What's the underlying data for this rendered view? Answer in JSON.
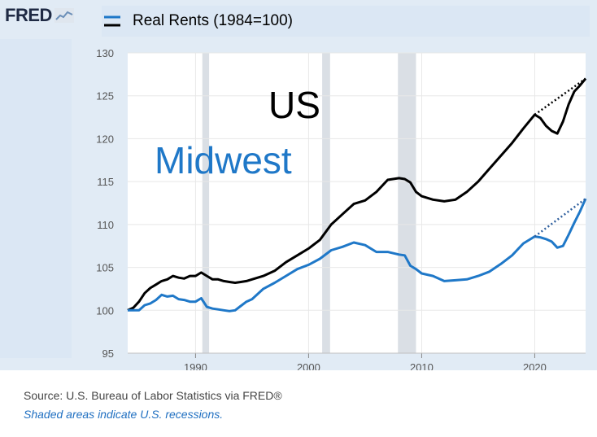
{
  "header": {
    "logo_text": "FRED",
    "logo_icon": "chart-line-icon"
  },
  "chart_data": {
    "type": "line",
    "title": "Real Rents (1984=100)",
    "xlabel": "",
    "ylabel": "",
    "xlim": [
      1984,
      2024.5
    ],
    "ylim": [
      95,
      130
    ],
    "x_ticks": [
      1990,
      2000,
      2010,
      2020
    ],
    "y_ticks": [
      95,
      100,
      105,
      110,
      115,
      120,
      125,
      130
    ],
    "grid": true,
    "recessions": [
      [
        1990.6,
        1991.2
      ],
      [
        2001.2,
        2001.9
      ],
      [
        2007.9,
        2009.5
      ]
    ],
    "series": [
      {
        "name": "US",
        "color": "#000000",
        "x": [
          1984,
          1984.5,
          1985,
          1985.5,
          1986,
          1986.5,
          1987,
          1987.5,
          1988,
          1988.5,
          1989,
          1989.5,
          1990,
          1990.5,
          1991,
          1991.5,
          1992,
          1992.5,
          1993,
          1993.5,
          1994,
          1994.5,
          1995,
          1996,
          1997,
          1998,
          1999,
          2000,
          2001,
          2002,
          2003,
          2004,
          2005,
          2006,
          2007,
          2008,
          2008.5,
          2009,
          2009.5,
          2010,
          2011,
          2012,
          2013,
          2014,
          2015,
          2016,
          2017,
          2018,
          2019,
          2020,
          2020.5,
          2021,
          2021.5,
          2022,
          2022.5,
          2023,
          2023.5,
          2024,
          2024.5
        ],
        "values": [
          100.0,
          100.3,
          101.0,
          102.0,
          102.6,
          103.0,
          103.4,
          103.6,
          104.0,
          103.8,
          103.7,
          104.0,
          104.0,
          104.4,
          104.0,
          103.6,
          103.6,
          103.4,
          103.3,
          103.2,
          103.3,
          103.4,
          103.6,
          104.0,
          104.6,
          105.6,
          106.4,
          107.2,
          108.2,
          110.0,
          111.2,
          112.4,
          112.8,
          113.8,
          115.2,
          115.4,
          115.3,
          114.9,
          113.8,
          113.3,
          112.9,
          112.7,
          112.9,
          113.8,
          115.0,
          116.5,
          118.0,
          119.5,
          121.2,
          122.8,
          122.4,
          121.5,
          120.9,
          120.6,
          122.0,
          124.0,
          125.5,
          126.2,
          127.0
        ],
        "trend_extension": {
          "x": [
            2020,
            2024.5
          ],
          "values": [
            122.8,
            127.0
          ]
        }
      },
      {
        "name": "Midwest",
        "color": "#1f78c8",
        "x": [
          1984,
          1984.5,
          1985,
          1985.5,
          1986,
          1986.5,
          1987,
          1987.5,
          1988,
          1988.5,
          1989,
          1989.5,
          1990,
          1990.5,
          1991,
          1991.5,
          1992,
          1992.5,
          1993,
          1993.5,
          1994,
          1994.5,
          1995,
          1996,
          1997,
          1998,
          1999,
          2000,
          2001,
          2002,
          2003,
          2004,
          2005,
          2006,
          2007,
          2008,
          2008.5,
          2009,
          2009.5,
          2010,
          2011,
          2012,
          2013,
          2014,
          2015,
          2016,
          2017,
          2018,
          2019,
          2020,
          2020.5,
          2021,
          2021.5,
          2022,
          2022.5,
          2023,
          2023.5,
          2024,
          2024.5
        ],
        "values": [
          100.0,
          100.0,
          100.0,
          100.6,
          100.8,
          101.2,
          101.8,
          101.6,
          101.7,
          101.3,
          101.2,
          101.0,
          101.0,
          101.4,
          100.4,
          100.2,
          100.1,
          100.0,
          99.9,
          100.0,
          100.5,
          101.0,
          101.3,
          102.5,
          103.2,
          104.0,
          104.8,
          105.3,
          106.0,
          107.0,
          107.4,
          107.9,
          107.6,
          106.8,
          106.8,
          106.5,
          106.4,
          105.2,
          104.8,
          104.3,
          104.0,
          103.4,
          103.5,
          103.6,
          104.0,
          104.5,
          105.4,
          106.4,
          107.8,
          108.6,
          108.5,
          108.3,
          108.0,
          107.3,
          107.5,
          108.8,
          110.2,
          111.5,
          113.0
        ],
        "trend_extension": {
          "x": [
            2020,
            2024.5
          ],
          "values": [
            108.6,
            113.0
          ]
        }
      }
    ],
    "annotations": [
      {
        "text": "US",
        "color": "#000000"
      },
      {
        "text": "Midwest",
        "color": "#1f78c8"
      }
    ]
  },
  "footer": {
    "source": "Source: U.S. Bureau of Labor Statistics via FRED®",
    "note": "Shaded areas indicate U.S. recessions."
  }
}
